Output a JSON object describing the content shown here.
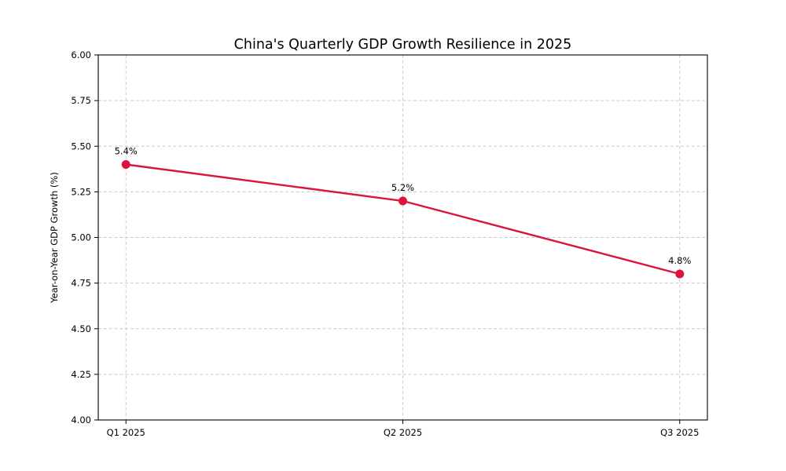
{
  "chart_data": {
    "type": "line",
    "title": "China's Quarterly GDP Growth Resilience in 2025",
    "categories": [
      "Q1 2025",
      "Q2 2025",
      "Q3 2025"
    ],
    "values": [
      5.4,
      5.2,
      4.8
    ],
    "point_labels": [
      "5.4%",
      "5.2%",
      "4.8%"
    ],
    "xlabel": "",
    "ylabel": "Year-on-Year GDP Growth (%)",
    "ylim": [
      4.0,
      6.0
    ],
    "yticks": [
      4.0,
      4.25,
      4.5,
      4.75,
      5.0,
      5.25,
      5.5,
      5.75,
      6.0
    ],
    "ytick_labels": [
      "4.00",
      "4.25",
      "4.50",
      "4.75",
      "5.00",
      "5.25",
      "5.50",
      "5.75",
      "6.00"
    ],
    "grid": true,
    "grid_style": "dashed",
    "grid_color": "#c9c9c9",
    "line_color": "#dc143c",
    "marker_color": "#dc143c",
    "axis_color": "#000000",
    "background": "#ffffff",
    "legend_position": "none"
  }
}
